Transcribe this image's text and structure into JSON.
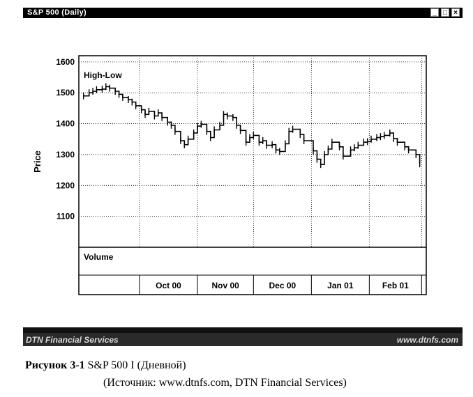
{
  "window": {
    "title": "S&P 500 (Daily)",
    "buttons": [
      "_",
      "□",
      "×"
    ]
  },
  "statusbar": {
    "left_text": "DTN Financial Services",
    "right_text": "www.dtnfs.com"
  },
  "caption": {
    "label": "Рисунок 3-1",
    "text": "S&P 500 I (Дневной)",
    "source": "(Источник: www.dtnfs.com, DTN Financial Services)"
  },
  "chart_data": {
    "type": "line",
    "title": "High-Low",
    "ylabel": "Price",
    "volume_label": "Volume",
    "ylim": [
      1000,
      1620
    ],
    "yticks": [
      1600,
      1500,
      1400,
      1300,
      1200,
      1100
    ],
    "xticks": [
      "Oct 00",
      "Nov 00",
      "Dec 00",
      "Jan 01",
      "Feb 01"
    ],
    "grid": true,
    "colors": {
      "line": "#000000",
      "grid": "#000000",
      "background": "#ffffff"
    },
    "series": [
      {
        "x": [
          "2000-09-01",
          "2000-09-04",
          "2000-09-06",
          "2000-09-08",
          "2000-09-11",
          "2000-09-13",
          "2000-09-15",
          "2000-09-18",
          "2000-09-20",
          "2000-09-22",
          "2000-09-25",
          "2000-09-27",
          "2000-09-29",
          "2000-10-02",
          "2000-10-04",
          "2000-10-06",
          "2000-10-09",
          "2000-10-11",
          "2000-10-13",
          "2000-10-16",
          "2000-10-18",
          "2000-10-20",
          "2000-10-23",
          "2000-10-25",
          "2000-10-27",
          "2000-10-30",
          "2000-11-01",
          "2000-11-03",
          "2000-11-06",
          "2000-11-08",
          "2000-11-10",
          "2000-11-13",
          "2000-11-15",
          "2000-11-17",
          "2000-11-20",
          "2000-11-22",
          "2000-11-24",
          "2000-11-27",
          "2000-11-29",
          "2000-12-01",
          "2000-12-04",
          "2000-12-06",
          "2000-12-08",
          "2000-12-11",
          "2000-12-13",
          "2000-12-15",
          "2000-12-18",
          "2000-12-20",
          "2000-12-22",
          "2000-12-26",
          "2000-12-28",
          "2001-01-02",
          "2001-01-04",
          "2001-01-06",
          "2001-01-08",
          "2001-01-10",
          "2001-01-12",
          "2001-01-16",
          "2001-01-18",
          "2001-01-22",
          "2001-01-24",
          "2001-01-26",
          "2001-01-29",
          "2001-01-31",
          "2001-02-02",
          "2001-02-05",
          "2001-02-07",
          "2001-02-09",
          "2001-02-12",
          "2001-02-14",
          "2001-02-16",
          "2001-02-20",
          "2001-02-22",
          "2001-02-26",
          "2001-02-28"
        ],
        "y": [
          1490,
          1500,
          1505,
          1510,
          1512,
          1520,
          1515,
          1505,
          1495,
          1485,
          1478,
          1470,
          1458,
          1445,
          1430,
          1440,
          1425,
          1435,
          1420,
          1405,
          1395,
          1375,
          1345,
          1332,
          1350,
          1370,
          1392,
          1398,
          1375,
          1355,
          1380,
          1395,
          1430,
          1425,
          1420,
          1395,
          1378,
          1340,
          1355,
          1362,
          1340,
          1345,
          1330,
          1332,
          1315,
          1310,
          1335,
          1375,
          1382,
          1365,
          1345,
          1312,
          1285,
          1268,
          1300,
          1318,
          1340,
          1325,
          1295,
          1315,
          1322,
          1330,
          1340,
          1342,
          1350,
          1355,
          1358,
          1362,
          1370,
          1352,
          1340,
          1325,
          1315,
          1300,
          1270
        ]
      }
    ]
  }
}
